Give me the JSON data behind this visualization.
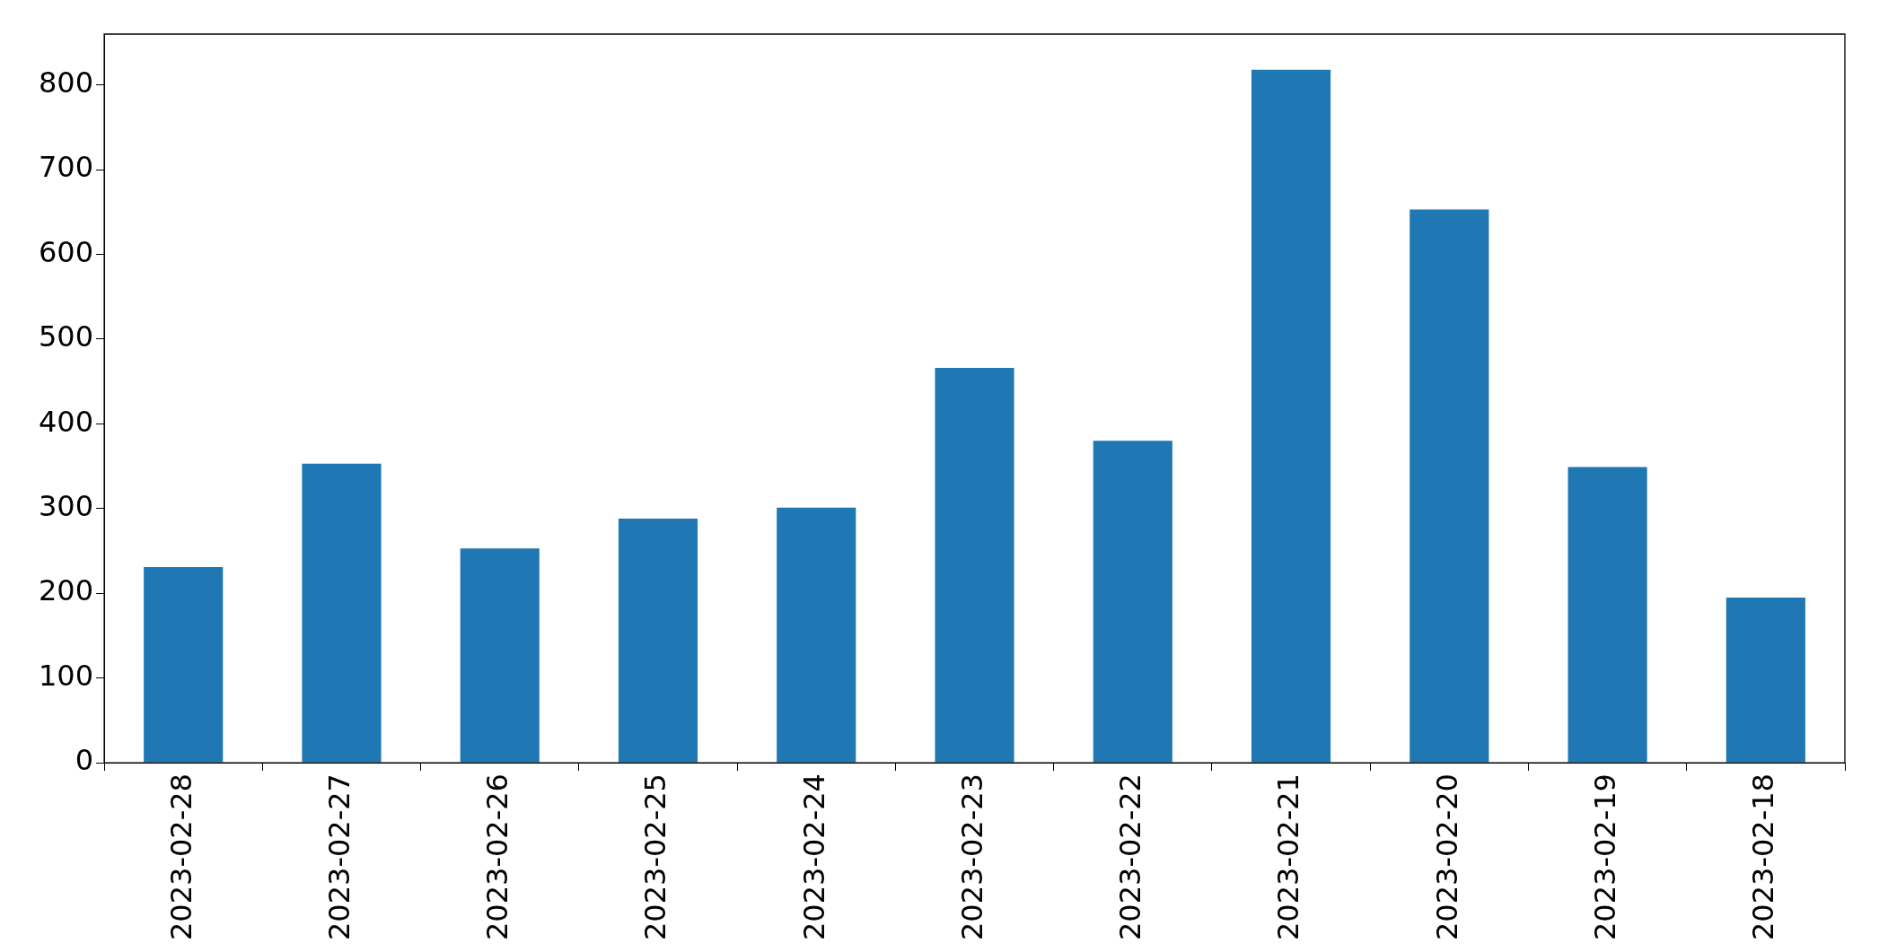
{
  "chart_data": {
    "type": "bar",
    "categories": [
      "2023-02-28",
      "2023-02-27",
      "2023-02-26",
      "2023-02-25",
      "2023-02-24",
      "2023-02-23",
      "2023-02-22",
      "2023-02-21",
      "2023-02-20",
      "2023-02-19",
      "2023-02-18"
    ],
    "values": [
      231,
      353,
      253,
      288,
      301,
      466,
      380,
      818,
      653,
      349,
      195
    ],
    "color": "#1f77b4",
    "ylim": [
      0,
      860
    ],
    "yticks": [
      0,
      100,
      200,
      300,
      400,
      500,
      600,
      700,
      800
    ]
  }
}
